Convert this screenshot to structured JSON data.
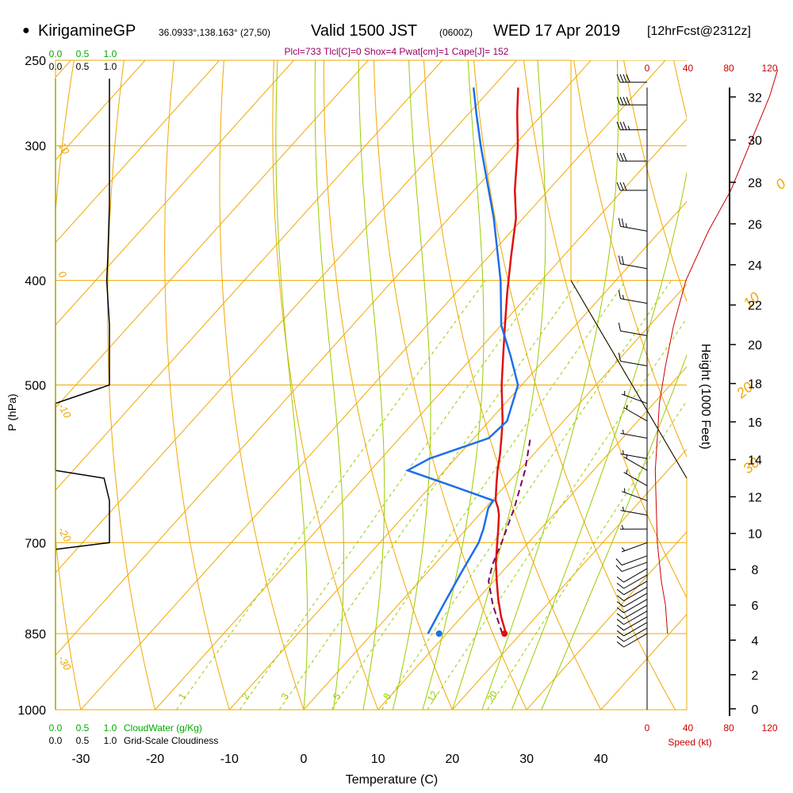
{
  "header": {
    "station": "KirigamineGP",
    "coords": "36.0933°,138.163° (27,50)",
    "valid": "Valid 1500 JST",
    "zulu": "(0600Z)",
    "date": "WED 17 Apr 2019",
    "fcst": "[12hrFcst@2312z]"
  },
  "indices": "Plcl=733 Tlcl[C]=0 Shox=4 Pwat[cm]=1 Cape[J]= 152",
  "colors": {
    "isotherm": "#f0a800",
    "dry_adiabat": "#f0a800",
    "moist_adiabat": "#99cc00",
    "mixing_ratio": "#99cc00",
    "temperature": "#e01010",
    "dewpoint": "#1e6ee8",
    "parcel": "#800060",
    "height": "#cc0000",
    "cloudwater": "#00aa00",
    "indices": "#990066"
  },
  "chart_data": {
    "type": "line",
    "skew_t": true,
    "y_axis_log": true,
    "xlabel": "Temperature (C)",
    "ylabel": "P (hPa)",
    "right_ylabel": "Height (1000 Feet)",
    "x_ticks": [
      -30,
      -20,
      -10,
      0,
      10,
      20,
      30,
      40
    ],
    "pressure_ticks": [
      250,
      300,
      400,
      500,
      700,
      850,
      1000
    ],
    "height_ticks": [
      0,
      2,
      4,
      6,
      8,
      10,
      12,
      14,
      16,
      18,
      20,
      22,
      24,
      26,
      28,
      30,
      32
    ],
    "series": [
      {
        "key": "temperature",
        "p": [
          850,
          820,
          790,
          760,
          730,
          700,
          680,
          660,
          650,
          640,
          620,
          600,
          580,
          560,
          540,
          520,
          500,
          470,
          440,
          410,
          380,
          350,
          330,
          300,
          280,
          265
        ],
        "t": [
          18,
          15.3,
          12.8,
          10.4,
          8.0,
          5.8,
          4.3,
          2.7,
          1.7,
          0.5,
          -1.2,
          -2.9,
          -4.5,
          -6.3,
          -8.2,
          -10.4,
          -12.7,
          -16.0,
          -19.5,
          -23.2,
          -27.0,
          -31.0,
          -34.5,
          -39.5,
          -43.5,
          -46.5
        ]
      },
      {
        "key": "dewpoint",
        "p": [
          850,
          800,
          750,
          700,
          680,
          650,
          640,
          620,
          600,
          585,
          560,
          540,
          500,
          470,
          440,
          400,
          350,
          300,
          280,
          265
        ],
        "t": [
          7.5,
          6.1,
          4.7,
          3.3,
          2.3,
          0.4,
          0.2,
          -7.2,
          -15.0,
          -13.5,
          -8.0,
          -7.6,
          -10.5,
          -15.0,
          -20.0,
          -25.5,
          -34.0,
          -44.5,
          -49.0,
          -52.5
        ]
      },
      {
        "key": "parcel",
        "p": [
          850,
          800,
          760,
          733,
          700,
          650,
          600,
          560
        ],
        "t": [
          17.5,
          12.8,
          9.3,
          7.8,
          6.4,
          3.9,
          0.8,
          -2.4
        ]
      }
    ],
    "surface_markers": [
      {
        "key": "temperature",
        "p": 850,
        "t": 17.8
      },
      {
        "key": "dewpoint",
        "p": 850,
        "t": 9.0
      }
    ],
    "winds": [
      {
        "p": 850,
        "dir": 240,
        "spd": 10
      },
      {
        "p": 840,
        "dir": 240,
        "spd": 10
      },
      {
        "p": 830,
        "dir": 240,
        "spd": 10
      },
      {
        "p": 820,
        "dir": 240,
        "spd": 10
      },
      {
        "p": 810,
        "dir": 240,
        "spd": 10
      },
      {
        "p": 800,
        "dir": 240,
        "spd": 10
      },
      {
        "p": 790,
        "dir": 240,
        "spd": 10
      },
      {
        "p": 780,
        "dir": 240,
        "spd": 10
      },
      {
        "p": 770,
        "dir": 240,
        "spd": 10
      },
      {
        "p": 760,
        "dir": 240,
        "spd": 10
      },
      {
        "p": 750,
        "dir": 240,
        "spd": 10
      },
      {
        "p": 740,
        "dir": 240,
        "spd": 10
      },
      {
        "p": 730,
        "dir": 250,
        "spd": 10
      },
      {
        "p": 720,
        "dir": 250,
        "spd": 10
      },
      {
        "p": 700,
        "dir": 250,
        "spd": 5
      },
      {
        "p": 680,
        "dir": 270,
        "spd": 5
      },
      {
        "p": 660,
        "dir": 280,
        "spd": 5
      },
      {
        "p": 640,
        "dir": 290,
        "spd": 5
      },
      {
        "p": 620,
        "dir": 300,
        "spd": 5
      },
      {
        "p": 600,
        "dir": 300,
        "spd": 5
      },
      {
        "p": 585,
        "dir": 280,
        "spd": 5
      },
      {
        "p": 560,
        "dir": 280,
        "spd": 5
      },
      {
        "p": 540,
        "dir": 300,
        "spd": 5
      },
      {
        "p": 520,
        "dir": 290,
        "spd": 5
      },
      {
        "p": 480,
        "dir": 280,
        "spd": 10
      },
      {
        "p": 450,
        "dir": 280,
        "spd": 10
      },
      {
        "p": 420,
        "dir": 280,
        "spd": 15
      },
      {
        "p": 390,
        "dir": 280,
        "spd": 20
      },
      {
        "p": 360,
        "dir": 280,
        "spd": 25
      },
      {
        "p": 330,
        "dir": 270,
        "spd": 30
      },
      {
        "p": 310,
        "dir": 270,
        "spd": 30
      },
      {
        "p": 290,
        "dir": 270,
        "spd": 35
      },
      {
        "p": 275,
        "dir": 270,
        "spd": 40
      },
      {
        "p": 262,
        "dir": 270,
        "spd": 40
      }
    ],
    "wind_speed_axis": {
      "ticks": [
        0,
        40,
        80,
        120
      ],
      "label": "Speed (kt)"
    },
    "wind_speed_profile": {
      "p": [
        850,
        800,
        760,
        730,
        700,
        650,
        600,
        560,
        520,
        480,
        440,
        400,
        360,
        330,
        300,
        270,
        255
      ],
      "spd": [
        20,
        18,
        14,
        12,
        10,
        9,
        8,
        10,
        12,
        18,
        26,
        38,
        60,
        82,
        100,
        120,
        128
      ]
    },
    "isotherms": [
      -110,
      -100,
      -90,
      -80,
      -70,
      -60,
      -50,
      -40,
      -30,
      -20,
      -10,
      0,
      10,
      20,
      30,
      40
    ],
    "dry_adiabats_c": [
      -30,
      -20,
      -10,
      0,
      10,
      20,
      30,
      40,
      50,
      60,
      70,
      80,
      90,
      100,
      110,
      120,
      130,
      140
    ],
    "moist_adiabats_c": [
      0,
      4,
      8,
      12,
      16,
      20,
      24,
      28,
      32
    ],
    "mixing_ratios": [
      1,
      2,
      3,
      5,
      8,
      12,
      20
    ],
    "isotherm_labels": [
      {
        "text": "0"
      },
      {
        "text": "10"
      },
      {
        "text": "20"
      },
      {
        "text": "30"
      }
    ],
    "dry_adiabat_labels": [
      {
        "text": "10"
      },
      {
        "text": "0"
      },
      {
        "text": "-10"
      },
      {
        "text": "-20"
      },
      {
        "text": "-30"
      }
    ],
    "cloudwater_axis": {
      "ticks": [
        "0.0",
        "0.5",
        "1.0"
      ],
      "label": "CloudWater (g/Kg)"
    },
    "cloudiness_axis": {
      "ticks": [
        "0.0",
        "0.5",
        "1.0"
      ],
      "label": "Grid-Scale Cloudiness"
    },
    "cloudiness_profile": {
      "p": [
        260,
        300,
        340,
        380,
        400,
        440,
        480,
        500,
        520,
        600,
        610,
        640,
        650,
        700,
        710
      ],
      "c": [
        1.0,
        1.0,
        1.0,
        0.97,
        0.95,
        1.0,
        1.0,
        1.0,
        0.0,
        0.0,
        0.9,
        1.0,
        1.0,
        1.0,
        0.0
      ]
    }
  }
}
